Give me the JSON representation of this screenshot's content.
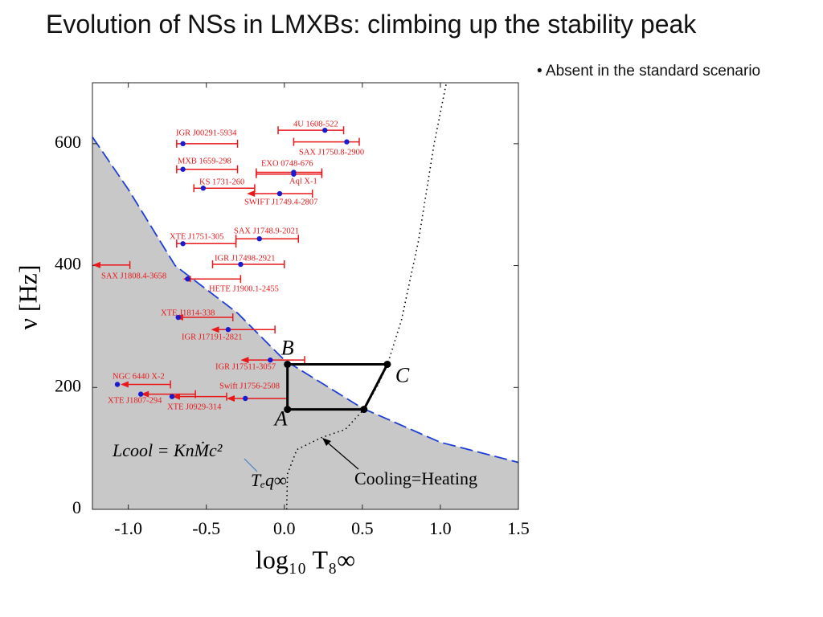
{
  "slide_title": "Evolution of NSs in LMXBs: climbing up the stability peak",
  "bullet": "Absent in the standard scenario",
  "chart_data": {
    "type": "scatter",
    "xlabel": "log₁₀ T₈∞",
    "ylabel": "ν [Hz]",
    "xlim": [
      -1.23,
      1.5
    ],
    "ylim": [
      0,
      700
    ],
    "xticks": [
      {
        "value": -1.0,
        "label": "-1.0"
      },
      -0.5,
      {
        "value": 0.0,
        "label": "0.0"
      },
      0.5,
      {
        "value": 1.0,
        "label": "1.0"
      },
      1.5
    ],
    "yticks": [
      0,
      200,
      400,
      600
    ],
    "point_color": "#1a1ad0",
    "bar_color": "#e8181b",
    "points": [
      {
        "name": "IGR J00291-5934",
        "x": -0.65,
        "y": 600,
        "lo": -0.69,
        "hi": -0.3,
        "upper_limit": false
      },
      {
        "name": "4U 1608-522",
        "x": 0.26,
        "y": 622,
        "lo": -0.04,
        "hi": 0.38,
        "upper_limit": false
      },
      {
        "name": "SAX J1750.8-2900",
        "x": 0.4,
        "y": 603,
        "lo": 0.06,
        "hi": 0.48,
        "upper_limit": false
      },
      {
        "name": "MXB 1659-298",
        "x": -0.65,
        "y": 558,
        "lo": -0.69,
        "hi": -0.3,
        "upper_limit": false
      },
      {
        "name": "EXO 0748-676",
        "x": 0.06,
        "y": 553,
        "lo": -0.18,
        "hi": 0.24,
        "upper_limit": false
      },
      {
        "name": "Aql X-1",
        "x": 0.06,
        "y": 550,
        "lo": -0.18,
        "hi": 0.24,
        "upper_limit": false
      },
      {
        "name": "KS 1731-260",
        "x": -0.52,
        "y": 527,
        "lo": -0.58,
        "hi": -0.19,
        "upper_limit": false
      },
      {
        "name": "SWIFT J1749.4-2807",
        "x": -0.03,
        "y": 518,
        "lo": -0.24,
        "hi": 0.18,
        "upper_limit": true
      },
      {
        "name": "SAX J1748.9-2021",
        "x": -0.16,
        "y": 444,
        "lo": -0.31,
        "hi": 0.09,
        "upper_limit": false
      },
      {
        "name": "XTE J1751-305",
        "x": -0.65,
        "y": 436,
        "lo": -0.69,
        "hi": -0.31,
        "upper_limit": false
      },
      {
        "name": "IGR J17498-2921",
        "x": -0.28,
        "y": 402,
        "lo": -0.46,
        "hi": 0.0,
        "upper_limit": false
      },
      {
        "name": "SAX J1808.4-3658",
        "x": null,
        "y": 401,
        "lo": -1.23,
        "hi": -0.99,
        "upper_limit": true
      },
      {
        "name": "HETE J1900.1-2455",
        "x": -0.62,
        "y": 378,
        "lo": -0.65,
        "hi": -0.28,
        "upper_limit": true
      },
      {
        "name": "XTE J1814-338",
        "x": -0.68,
        "y": 315,
        "lo": -0.7,
        "hi": -0.33,
        "upper_limit": true
      },
      {
        "name": "IGR J17191-2821",
        "x": -0.36,
        "y": 295,
        "lo": -0.47,
        "hi": -0.06,
        "upper_limit": true
      },
      {
        "name": "IGR J17511-3057",
        "x": -0.09,
        "y": 245,
        "lo": -0.28,
        "hi": 0.13,
        "upper_limit": true
      },
      {
        "name": "NGC 6440 X-2",
        "x": -1.07,
        "y": 205,
        "lo": -1.05,
        "hi": -0.73,
        "upper_limit": true
      },
      {
        "name": "XTE J1807-294",
        "x": -0.92,
        "y": 189,
        "lo": -0.92,
        "hi": -0.57,
        "upper_limit": true
      },
      {
        "name": "Swift J1756-2508",
        "x": -0.25,
        "y": 182,
        "lo": -0.37,
        "hi": 0.02,
        "upper_limit": true
      },
      {
        "name": "XTE J0929-314",
        "x": -0.72,
        "y": 185,
        "lo": -0.72,
        "hi": -0.37,
        "upper_limit": true
      }
    ],
    "stability_curve": {
      "color": "#1f3fd6",
      "fill": "#c8c8c8",
      "x": [
        -1.23,
        -1.0,
        -0.7,
        -0.3,
        0.0,
        0.5,
        1.0,
        1.5
      ],
      "y": [
        611,
        525,
        400,
        322,
        245,
        166,
        110,
        77
      ]
    },
    "equilibrium_curve": {
      "x": [
        0.015,
        0.02,
        0.08,
        0.24,
        0.39,
        0.51,
        0.6,
        0.66,
        0.75,
        0.86,
        0.96,
        1.04
      ],
      "y": [
        0,
        58,
        98,
        118,
        131,
        164,
        204,
        237,
        310,
        441,
        600,
        702
      ]
    },
    "cycle": {
      "labels": [
        "A",
        "B",
        "C",
        null
      ],
      "x": [
        0.02,
        0.02,
        0.66,
        0.51
      ],
      "y": [
        164,
        238,
        238,
        164
      ]
    },
    "annotations": [
      "Lcool = KnṀc²",
      "Tₑq∞",
      "Cooling=Heating"
    ]
  }
}
